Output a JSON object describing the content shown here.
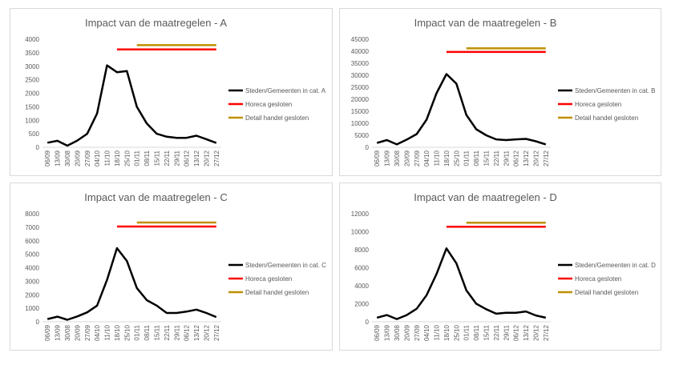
{
  "chart_data": [
    {
      "type": "line",
      "title": "Impact van de maatregelen - A",
      "categories": [
        "06/09",
        "13/09",
        "30/08",
        "20/09",
        "27/09",
        "04/10",
        "11/10",
        "18/10",
        "25/10",
        "01/11",
        "08/11",
        "15/11",
        "22/11",
        "29/11",
        "06/12",
        "13/12",
        "20/12",
        "27/12"
      ],
      "ylim": [
        0,
        4000
      ],
      "yticks": [
        "0",
        "500",
        "1000",
        "1500",
        "2000",
        "2500",
        "3000",
        "3500",
        "4000"
      ],
      "series": [
        {
          "name": "Steden/Gemeenten in cat. A",
          "color": "#000000",
          "values": [
            170,
            240,
            60,
            250,
            500,
            1250,
            3030,
            2780,
            2820,
            1500,
            880,
            500,
            390,
            350,
            350,
            430,
            300,
            160
          ]
        },
        {
          "name": "Horeca gesloten",
          "color": "#ff0000",
          "values": [
            null,
            null,
            null,
            null,
            null,
            null,
            null,
            3620,
            3620,
            3620,
            3620,
            3620,
            3620,
            3620,
            3620,
            3620,
            3620,
            3620
          ]
        },
        {
          "name": "Detail handel gesloten",
          "color": "#bf9000",
          "values": [
            null,
            null,
            null,
            null,
            null,
            null,
            null,
            null,
            null,
            3780,
            3780,
            3780,
            3780,
            3780,
            3780,
            3780,
            3780,
            3780
          ]
        }
      ],
      "grid": false,
      "legend": "right"
    },
    {
      "type": "line",
      "title": "Impact van de maatregelen - B",
      "categories": [
        "06/09",
        "13/09",
        "30/08",
        "20/09",
        "27/09",
        "04/10",
        "11/10",
        "18/10",
        "25/10",
        "01/11",
        "08/11",
        "15/11",
        "22/11",
        "29/11",
        "06/12",
        "13/12",
        "20/12",
        "27/12"
      ],
      "ylim": [
        0,
        45000
      ],
      "yticks": [
        "0",
        "5000",
        "10000",
        "15000",
        "20000",
        "25000",
        "30000",
        "35000",
        "40000",
        "45000"
      ],
      "series": [
        {
          "name": "Steden/Gemeenten in cat. B",
          "color": "#000000",
          "values": [
            1800,
            3000,
            1200,
            3200,
            5500,
            11500,
            22500,
            30500,
            26500,
            13500,
            7500,
            5000,
            3300,
            3000,
            3300,
            3500,
            2500,
            1200
          ]
        },
        {
          "name": "Horeca gesloten",
          "color": "#ff0000",
          "values": [
            null,
            null,
            null,
            null,
            null,
            null,
            null,
            39700,
            39700,
            39700,
            39700,
            39700,
            39700,
            39700,
            39700,
            39700,
            39700,
            39700
          ]
        },
        {
          "name": "Detail handel gesloten",
          "color": "#bf9000",
          "values": [
            null,
            null,
            null,
            null,
            null,
            null,
            null,
            null,
            null,
            41200,
            41200,
            41200,
            41200,
            41200,
            41200,
            41200,
            41200,
            41200
          ]
        }
      ],
      "grid": false,
      "legend": "right"
    },
    {
      "type": "line",
      "title": "Impact van de maatregelen - C",
      "categories": [
        "06/09",
        "13/09",
        "30/08",
        "20/09",
        "27/09",
        "04/10",
        "11/10",
        "18/10",
        "25/10",
        "01/11",
        "08/11",
        "15/11",
        "22/11",
        "29/11",
        "06/12",
        "13/12",
        "20/12",
        "27/12"
      ],
      "ylim": [
        0,
        8000
      ],
      "yticks": [
        "0",
        "1000",
        "2000",
        "3000",
        "4000",
        "5000",
        "6000",
        "7000",
        "8000"
      ],
      "series": [
        {
          "name": "Steden/Gemeenten in cat. C",
          "color": "#000000",
          "values": [
            200,
            380,
            150,
            400,
            700,
            1200,
            3100,
            5450,
            4500,
            2500,
            1600,
            1200,
            650,
            650,
            750,
            900,
            650,
            350
          ]
        },
        {
          "name": "Horeca gesloten",
          "color": "#ff0000",
          "values": [
            null,
            null,
            null,
            null,
            null,
            null,
            null,
            7050,
            7050,
            7050,
            7050,
            7050,
            7050,
            7050,
            7050,
            7050,
            7050,
            7050
          ]
        },
        {
          "name": "Detail handel gesloten",
          "color": "#bf9000",
          "values": [
            null,
            null,
            null,
            null,
            null,
            null,
            null,
            null,
            null,
            7350,
            7350,
            7350,
            7350,
            7350,
            7350,
            7350,
            7350,
            7350
          ]
        }
      ],
      "grid": false,
      "legend": "right"
    },
    {
      "type": "line",
      "title": "Impact van de maatregelen - D",
      "categories": [
        "06/09",
        "13/09",
        "30/08",
        "20/09",
        "27/09",
        "04/10",
        "11/10",
        "18/10",
        "25/10",
        "01/11",
        "08/11",
        "15/11",
        "22/11",
        "29/11",
        "06/12",
        "13/12",
        "20/12",
        "27/12"
      ],
      "ylim": [
        0,
        12000
      ],
      "yticks": [
        "0",
        "2000",
        "4000",
        "6000",
        "8000",
        "10000",
        "12000"
      ],
      "series": [
        {
          "name": "Steden/Gemeenten in cat. D",
          "color": "#000000",
          "values": [
            450,
            750,
            300,
            750,
            1450,
            2950,
            5300,
            8150,
            6500,
            3500,
            2000,
            1400,
            900,
            1000,
            1000,
            1150,
            700,
            450
          ]
        },
        {
          "name": "Horeca gesloten",
          "color": "#ff0000",
          "values": [
            null,
            null,
            null,
            null,
            null,
            null,
            null,
            10550,
            10550,
            10550,
            10550,
            10550,
            10550,
            10550,
            10550,
            10550,
            10550,
            10550
          ]
        },
        {
          "name": "Detail handel gesloten",
          "color": "#bf9000",
          "values": [
            null,
            null,
            null,
            null,
            null,
            null,
            null,
            null,
            null,
            11000,
            11000,
            11000,
            11000,
            11000,
            11000,
            11000,
            11000,
            11000
          ]
        }
      ],
      "grid": false,
      "legend": "right"
    }
  ]
}
